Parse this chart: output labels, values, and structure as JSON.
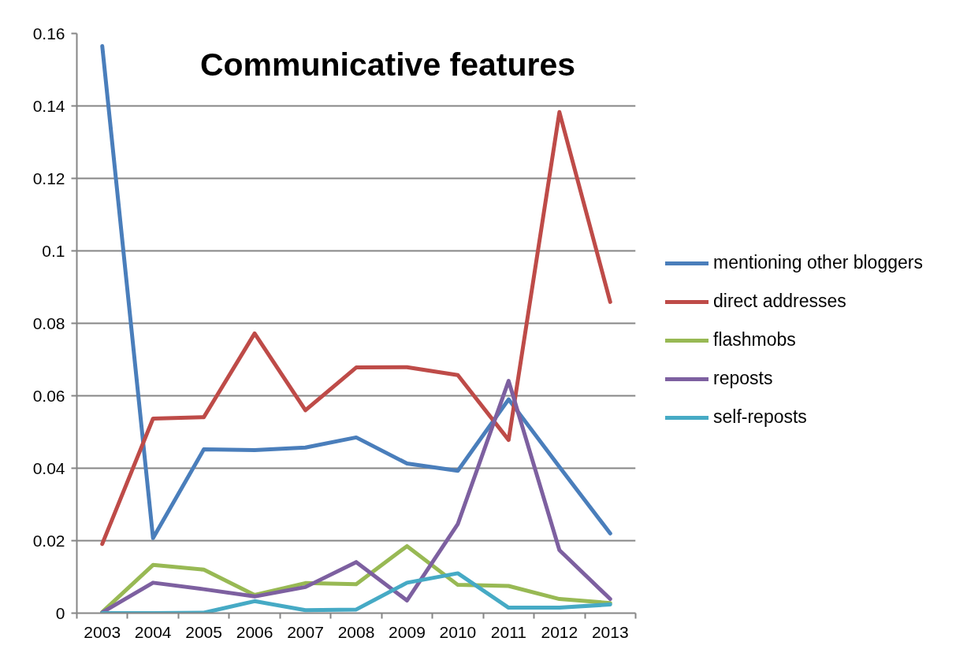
{
  "chart_data": {
    "type": "line",
    "title": "Communicative features",
    "categories": [
      "2003",
      "2004",
      "2005",
      "2006",
      "2007",
      "2008",
      "2009",
      "2010",
      "2011",
      "2012",
      "2013"
    ],
    "series": [
      {
        "name": "mentioning other bloggers",
        "color": "#4a7ebb",
        "values": [
          0.1565,
          0.0207,
          0.0452,
          0.045,
          0.0457,
          0.0485,
          0.0413,
          0.0393,
          0.059,
          0.0404,
          0.022
        ]
      },
      {
        "name": "direct addresses",
        "color": "#be4b48",
        "values": [
          0.0191,
          0.0537,
          0.0541,
          0.0772,
          0.056,
          0.0678,
          0.0679,
          0.0657,
          0.0478,
          0.1383,
          0.0859
        ]
      },
      {
        "name": "flashmobs",
        "color": "#98b954",
        "values": [
          0.0003,
          0.0133,
          0.012,
          0.005,
          0.0083,
          0.008,
          0.0185,
          0.0078,
          0.0075,
          0.0039,
          0.0028
        ]
      },
      {
        "name": "reposts",
        "color": "#7d60a0",
        "values": [
          0.0002,
          0.0084,
          0.0066,
          0.0046,
          0.0072,
          0.0141,
          0.0035,
          0.0246,
          0.0641,
          0.0174,
          0.0039
        ]
      },
      {
        "name": "self-reposts",
        "color": "#46aac5",
        "values": [
          0,
          0,
          0.0001,
          0.0033,
          0.0008,
          0.001,
          0.0084,
          0.011,
          0.0015,
          0.0015,
          0.0024
        ]
      }
    ],
    "ylim": [
      0,
      0.16
    ],
    "yticks": [
      0,
      0.02,
      0.04,
      0.06,
      0.08,
      0.1,
      0.12,
      0.14,
      0.16
    ],
    "grid": "y",
    "legend": "right"
  }
}
